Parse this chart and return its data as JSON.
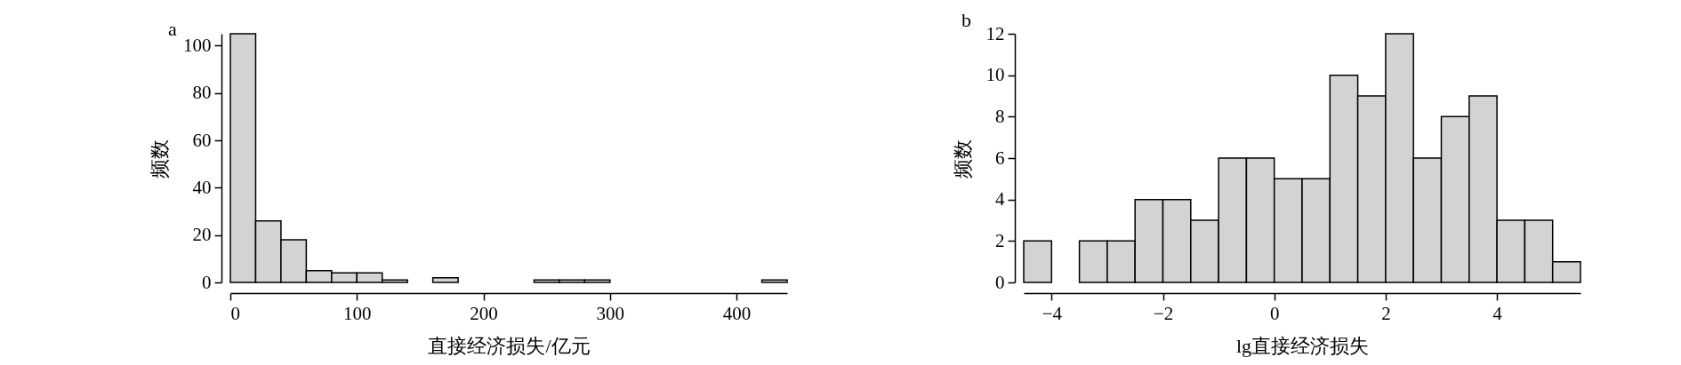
{
  "chart_data": [
    {
      "type": "histogram",
      "title": "a",
      "xlabel": "直接经济损失/亿元",
      "ylabel": "频数",
      "color": "#d3d3d3",
      "bins": [
        0,
        20,
        40,
        60,
        80,
        100,
        120,
        140,
        160,
        180,
        200,
        220,
        240,
        260,
        280,
        300,
        320,
        340,
        360,
        380,
        400,
        420,
        440
      ],
      "values": [
        105,
        26,
        18,
        5,
        4,
        4,
        1,
        0,
        2,
        0,
        0,
        0,
        1,
        1,
        1,
        0,
        0,
        0,
        0,
        0,
        0,
        1
      ],
      "xlim": [
        0,
        440
      ],
      "xticks": [
        0,
        100,
        200,
        300,
        400
      ],
      "ylim": [
        0,
        105
      ],
      "yticks": [
        0,
        20,
        40,
        60,
        80,
        100
      ]
    },
    {
      "type": "histogram",
      "title": "b",
      "xlabel": "lg直接经济损失",
      "ylabel": "频数",
      "color": "#d3d3d3",
      "bins": [
        -4.5,
        -4,
        -3.5,
        -3,
        -2.5,
        -2,
        -1.5,
        -1,
        -0.5,
        0,
        0.5,
        1,
        1.5,
        2,
        2.5,
        3,
        3.5,
        4,
        4.5,
        5,
        5.5
      ],
      "values": [
        2,
        0,
        2,
        2,
        4,
        4,
        3,
        6,
        6,
        5,
        5,
        10,
        9,
        12,
        6,
        8,
        9,
        3,
        3,
        1
      ],
      "xlim": [
        -4.5,
        5.5
      ],
      "xticks": [
        -4,
        -2,
        0,
        2,
        4
      ],
      "ylim": [
        0,
        12
      ],
      "yticks": [
        0,
        2,
        4,
        6,
        8,
        10,
        12
      ]
    }
  ]
}
